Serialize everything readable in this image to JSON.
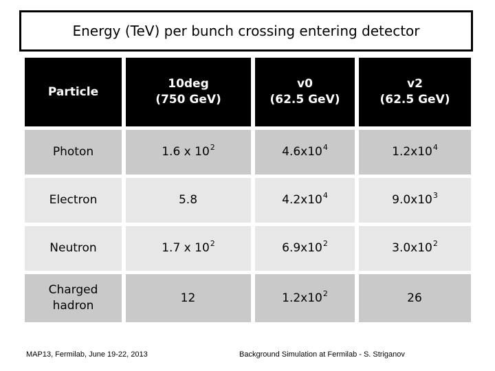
{
  "slide": {
    "title": "Energy (TeV) per bunch crossing entering detector",
    "footer_left": "MAP13, Fermilab, June 19-22, 2013",
    "footer_right": "Background Simulation at Fermilab - S. Striganov"
  },
  "table": {
    "columns": [
      {
        "line1": "Particle",
        "line2": ""
      },
      {
        "line1": "10deg",
        "line2": "(750 GeV)"
      },
      {
        "line1": "v0",
        "line2": "(62.5 GeV)"
      },
      {
        "line1": "v2",
        "line2": "(62.5 GeV)"
      }
    ],
    "rows": [
      {
        "particle": "Photon",
        "values": [
          {
            "base": "1.6 x 10",
            "exp": "2"
          },
          {
            "base": "4.6x10",
            "exp": "4"
          },
          {
            "base": "1.2x10",
            "exp": "4"
          }
        ]
      },
      {
        "particle": "Electron",
        "values": [
          {
            "base": "5.8",
            "exp": ""
          },
          {
            "base": "4.2x10",
            "exp": "4"
          },
          {
            "base": "9.0x10",
            "exp": "3"
          }
        ]
      },
      {
        "particle": "Neutron",
        "values": [
          {
            "base": "1.7 x 10",
            "exp": "2"
          },
          {
            "base": "6.9x10",
            "exp": "2"
          },
          {
            "base": "3.0x10",
            "exp": "2"
          }
        ]
      },
      {
        "particle": "Charged\nhadron",
        "values": [
          {
            "base": "12",
            "exp": ""
          },
          {
            "base": "1.2x10",
            "exp": "2"
          },
          {
            "base": "26",
            "exp": ""
          }
        ]
      }
    ]
  },
  "colors": {
    "page_bg": "#ffffff",
    "header_bg": "#000000",
    "header_text": "#ffffff",
    "row_dark": "#c9c9c9",
    "row_light": "#e7e7e7",
    "title_text": "#000000"
  }
}
